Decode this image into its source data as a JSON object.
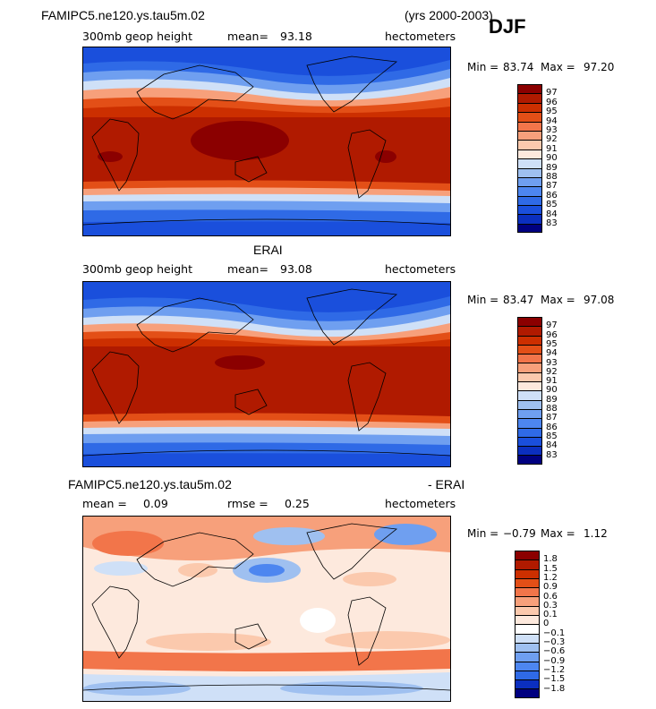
{
  "season": "DJF",
  "panels": [
    {
      "title_left": "FAMIPC5.ne120.ys.tau5m.02",
      "title_right": "(yrs 2000-2003)",
      "field_label": "300mb geop height",
      "stat1_label": "mean=",
      "stat1_value": "93.18",
      "units": "hectometers",
      "min_label": "Min =",
      "min_value": "83.74",
      "max_label": "Max =",
      "max_value": "97.20",
      "colorbar_levels": [
        "97",
        "96",
        "95",
        "94",
        "93",
        "92",
        "91",
        "90",
        "89",
        "88",
        "87",
        "86",
        "85",
        "84",
        "83"
      ],
      "colorbar_colors": [
        "#8b0000",
        "#b01a00",
        "#cc2f00",
        "#e34f17",
        "#f2754a",
        "#f7a07b",
        "#fbc9ad",
        "#fde9dd",
        "#cfe0f7",
        "#9fc0f0",
        "#6f9ff0",
        "#4d86f0",
        "#2f6ae6",
        "#1a4fdc",
        "#0b2fbf",
        "#000080"
      ]
    },
    {
      "title_center": "ERAI",
      "field_label": "300mb geop height",
      "stat1_label": "mean=",
      "stat1_value": "93.08",
      "units": "hectometers",
      "min_label": "Min =",
      "min_value": "83.47",
      "max_label": "Max =",
      "max_value": "97.08",
      "colorbar_levels": [
        "97",
        "96",
        "95",
        "94",
        "93",
        "92",
        "91",
        "90",
        "89",
        "88",
        "87",
        "86",
        "85",
        "84",
        "83"
      ],
      "colorbar_colors": [
        "#8b0000",
        "#b01a00",
        "#cc2f00",
        "#e34f17",
        "#f2754a",
        "#f7a07b",
        "#fbc9ad",
        "#fde9dd",
        "#cfe0f7",
        "#9fc0f0",
        "#6f9ff0",
        "#4d86f0",
        "#2f6ae6",
        "#1a4fdc",
        "#0b2fbf",
        "#000080"
      ]
    },
    {
      "title_left": "FAMIPC5.ne120.ys.tau5m.02",
      "title_right": "- ERAI",
      "stat1_label": "mean =",
      "stat1_value": "0.09",
      "stat2_label": "rmse =",
      "stat2_value": "0.25",
      "units": "hectometers",
      "min_label": "Min =",
      "min_value": "−0.79",
      "max_label": "Max =",
      "max_value": "1.12",
      "colorbar_levels": [
        "1.8",
        "1.5",
        "1.2",
        "0.9",
        "0.6",
        "0.3",
        "0.1",
        "0",
        "−0.1",
        "−0.3",
        "−0.6",
        "−0.9",
        "−1.2",
        "−1.5",
        "−1.8"
      ],
      "colorbar_colors": [
        "#8b0000",
        "#b01a00",
        "#cc2f00",
        "#e34f17",
        "#f2754a",
        "#f7a07b",
        "#fbc9ad",
        "#fde9dd",
        "#ffffff",
        "#cfe0f7",
        "#9fc0f0",
        "#6f9ff0",
        "#4d86f0",
        "#2f6ae6",
        "#0b2fbf",
        "#000080"
      ]
    }
  ]
}
